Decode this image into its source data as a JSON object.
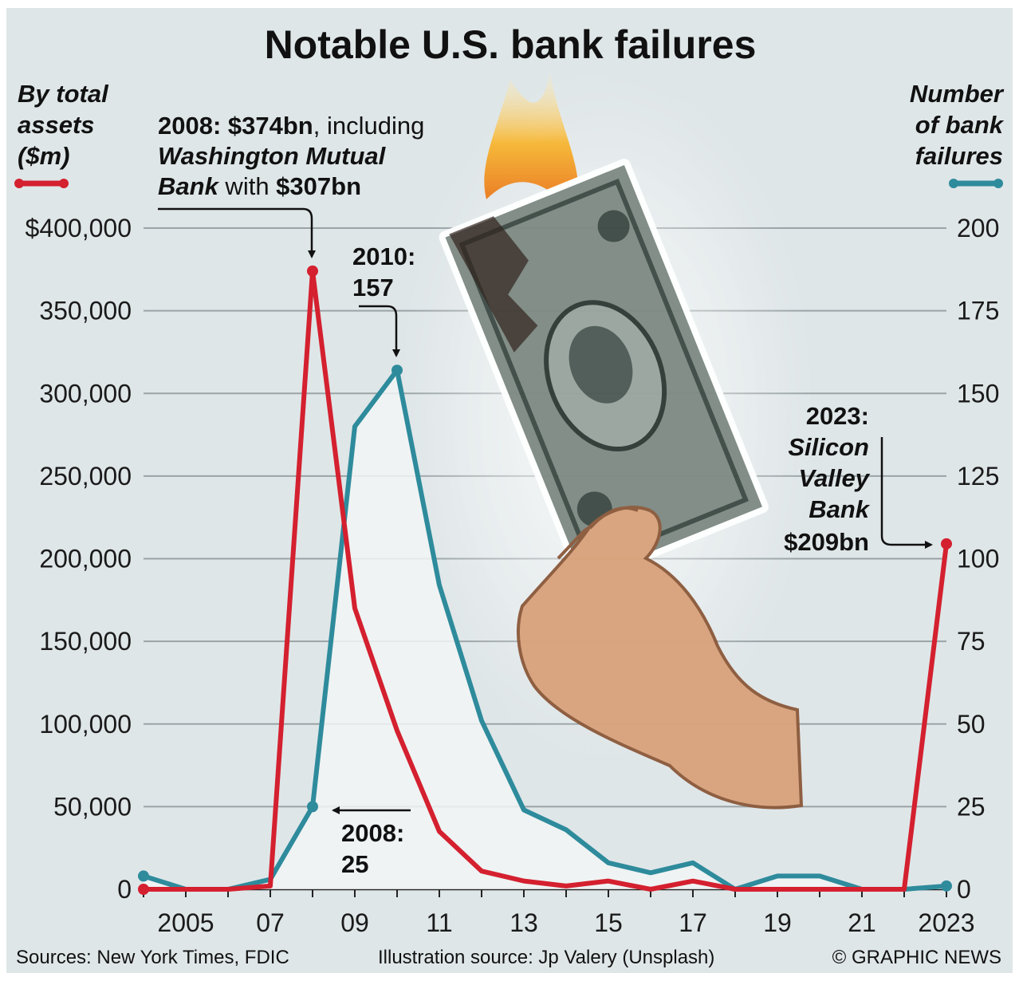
{
  "title": "Notable U.S. bank failures",
  "left_axis_label": [
    "By total",
    "assets",
    "($m)"
  ],
  "right_axis_label": [
    "Number",
    "of bank",
    "failures"
  ],
  "annotations": {
    "peak_assets": {
      "line1_bold": "2008: $374bn",
      "line1_rest": ", including",
      "line2_italic": "Washington Mutual",
      "line3_italic": "Bank",
      "line3_rest": " with ",
      "line3_bold": "$307bn"
    },
    "peak_count": [
      "2010:",
      "157"
    ],
    "count_2008": [
      "2008:",
      "25"
    ],
    "svb": {
      "line1": "2023:",
      "line2": "Silicon",
      "line3": "Valley",
      "line4": "Bank",
      "line5": "$209bn"
    }
  },
  "footer": {
    "sources": "Sources: New York Times, FDIC",
    "illustration": "Illustration source: Jp Valery (Unsplash)",
    "credit": "© GRAPHIC NEWS"
  },
  "colors": {
    "assets_line": "#d4202f",
    "count_line": "#2e8b9c",
    "background": "#dfe6e8",
    "grid": "#9aa3a6"
  },
  "illustration": "burning-dollar-bill-in-hand",
  "chart_data": {
    "type": "line",
    "x": [
      2004,
      2005,
      2006,
      2007,
      2008,
      2009,
      2010,
      2011,
      2012,
      2013,
      2014,
      2015,
      2016,
      2017,
      2018,
      2019,
      2020,
      2021,
      2022,
      2023
    ],
    "x_tick_labels": [
      {
        "x": 2005,
        "label": "2005"
      },
      {
        "x": 2007,
        "label": "07"
      },
      {
        "x": 2009,
        "label": "09"
      },
      {
        "x": 2011,
        "label": "11"
      },
      {
        "x": 2013,
        "label": "13"
      },
      {
        "x": 2015,
        "label": "15"
      },
      {
        "x": 2017,
        "label": "17"
      },
      {
        "x": 2019,
        "label": "19"
      },
      {
        "x": 2021,
        "label": "21"
      },
      {
        "x": 2023,
        "label": "2023"
      }
    ],
    "series": [
      {
        "name": "By total assets ($m)",
        "axis": "left",
        "values": [
          0,
          0,
          0,
          2000,
          374000,
          170000,
          96000,
          35000,
          11000,
          5000,
          2000,
          5000,
          0,
          5000,
          0,
          0,
          0,
          0,
          0,
          209000
        ]
      },
      {
        "name": "Number of bank failures",
        "axis": "right",
        "values": [
          4,
          0,
          0,
          3,
          25,
          140,
          157,
          92,
          51,
          24,
          18,
          8,
          5,
          8,
          0,
          4,
          4,
          0,
          0,
          1
        ]
      }
    ],
    "left_ylim": [
      0,
      400000
    ],
    "left_yticks": [
      "0",
      "50,000",
      "100,000",
      "150,000",
      "200,000",
      "250,000",
      "300,000",
      "350,000",
      "$400,000"
    ],
    "right_ylim": [
      0,
      200
    ],
    "right_yticks": [
      "0",
      "25",
      "50",
      "75",
      "100",
      "125",
      "150",
      "175",
      "200"
    ],
    "grid": true
  }
}
